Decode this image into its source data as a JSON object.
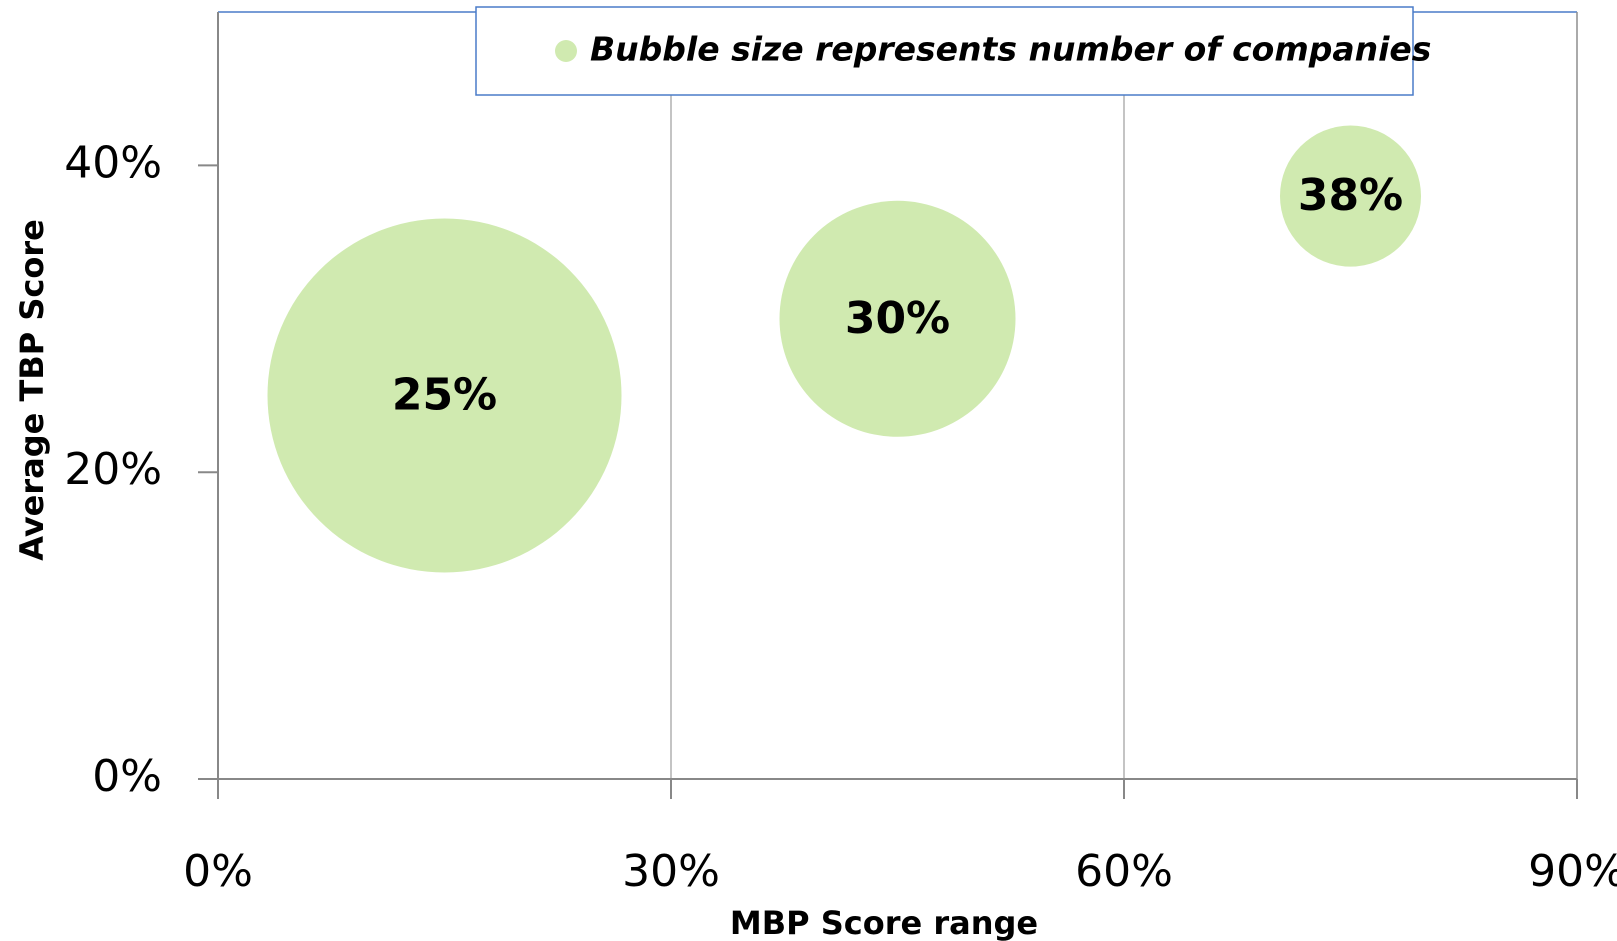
{
  "chart_data": {
    "type": "bubble",
    "legend_text": "Bubble size represents number of companies",
    "xlabel": "MBP Score range",
    "ylabel": "Average TBP Score",
    "x": [
      15,
      45,
      75
    ],
    "values": [
      25,
      30,
      38
    ],
    "value_labels": [
      "25%",
      "30%",
      "38%"
    ],
    "sizes": [
      63,
      28,
      10
    ],
    "color": "#d0eab0",
    "xlim": [
      0,
      90
    ],
    "xticks": [
      {
        "value": 0,
        "label": "0%"
      },
      {
        "value": 30,
        "label": "30%"
      },
      {
        "value": 60,
        "label": "60%"
      },
      {
        "value": 90,
        "label": "90%"
      }
    ],
    "ylim": [
      0,
      50
    ],
    "yticks": [
      {
        "value": 0,
        "label": "0%"
      },
      {
        "value": 20,
        "label": "20%"
      },
      {
        "value": 40,
        "label": "40%"
      }
    ],
    "grid": true
  }
}
